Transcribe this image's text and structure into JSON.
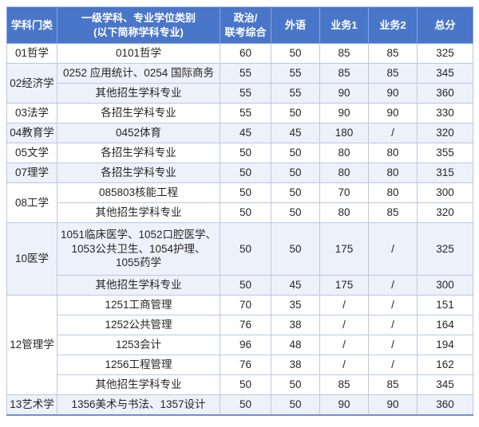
{
  "page": {
    "background": "#ffffff"
  },
  "table": {
    "colors": {
      "header_bg": "#4a76c9",
      "header_text": "#ffffff",
      "header_divider": "#8aa4dd",
      "border": "#b9c7e8",
      "shaded_row_bg": "#edf1fa",
      "body_text": "#262626",
      "bottom_border": "#6f8fd2"
    },
    "headers": [
      {
        "id": "category",
        "label": "学科门类"
      },
      {
        "id": "program",
        "label": "一级学科、专业学位类别\n(以下简称学科专业)"
      },
      {
        "id": "politics",
        "label": "政治/\n联考综合"
      },
      {
        "id": "foreign-language",
        "label": "外语"
      },
      {
        "id": "business1",
        "label": "业务1"
      },
      {
        "id": "business2",
        "label": "业务2"
      },
      {
        "id": "total",
        "label": "总分"
      }
    ],
    "sections": [
      {
        "category": "01哲学",
        "shaded": false,
        "rows": [
          {
            "program": "0101哲学",
            "scores": [
              "60",
              "50",
              "85",
              "85",
              "325"
            ]
          }
        ]
      },
      {
        "category": "02经济学",
        "shaded": true,
        "rows": [
          {
            "program": "0252 应用统计、0254 国际商务",
            "scores": [
              "55",
              "55",
              "85",
              "85",
              "345"
            ]
          },
          {
            "program": "其他招生学科专业",
            "scores": [
              "55",
              "55",
              "90",
              "90",
              "360"
            ]
          }
        ]
      },
      {
        "category": "03法学",
        "shaded": false,
        "rows": [
          {
            "program": "各招生学科专业",
            "scores": [
              "55",
              "50",
              "90",
              "90",
              "330"
            ]
          }
        ]
      },
      {
        "category": "04教育学",
        "shaded": true,
        "rows": [
          {
            "program": "0452体育",
            "scores": [
              "45",
              "45",
              "180",
              "/",
              "320"
            ]
          }
        ]
      },
      {
        "category": "05文学",
        "shaded": false,
        "rows": [
          {
            "program": "各招生学科专业",
            "scores": [
              "50",
              "50",
              "80",
              "80",
              "355"
            ]
          }
        ]
      },
      {
        "category": "07理学",
        "shaded": true,
        "rows": [
          {
            "program": "各招生学科专业",
            "scores": [
              "50",
              "50",
              "80",
              "80",
              "315"
            ]
          }
        ]
      },
      {
        "category": "08工学",
        "shaded": false,
        "rows": [
          {
            "program": "085803核能工程",
            "scores": [
              "50",
              "50",
              "70",
              "80",
              "300"
            ]
          },
          {
            "program": "其他招生学科专业",
            "scores": [
              "50",
              "50",
              "80",
              "85",
              "320"
            ]
          }
        ]
      },
      {
        "category": "10医学",
        "shaded": true,
        "rows": [
          {
            "program": "1051临床医学、1052口腔医学、1053公共卫生、1054护理、1055药学",
            "scores": [
              "50",
              "50",
              "175",
              "/",
              "325"
            ],
            "tall": true
          },
          {
            "program": "其他招生学科专业",
            "scores": [
              "50",
              "45",
              "175",
              "/",
              "300"
            ]
          }
        ]
      },
      {
        "category": "12管理学",
        "shaded": false,
        "rows": [
          {
            "program": "1251工商管理",
            "scores": [
              "70",
              "35",
              "/",
              "/",
              "151"
            ]
          },
          {
            "program": "1252公共管理",
            "scores": [
              "76",
              "38",
              "/",
              "/",
              "164"
            ]
          },
          {
            "program": "1253会计",
            "scores": [
              "96",
              "48",
              "/",
              "/",
              "194"
            ]
          },
          {
            "program": "1256工程管理",
            "scores": [
              "76",
              "38",
              "/",
              "/",
              "162"
            ]
          },
          {
            "program": "其他招生学科专业",
            "scores": [
              "50",
              "50",
              "85",
              "85",
              "345"
            ]
          }
        ]
      },
      {
        "category": "13艺术学",
        "shaded": true,
        "rows": [
          {
            "program": "1356美术与书法、1357设计",
            "scores": [
              "50",
              "50",
              "90",
              "90",
              "360"
            ]
          }
        ]
      }
    ]
  }
}
